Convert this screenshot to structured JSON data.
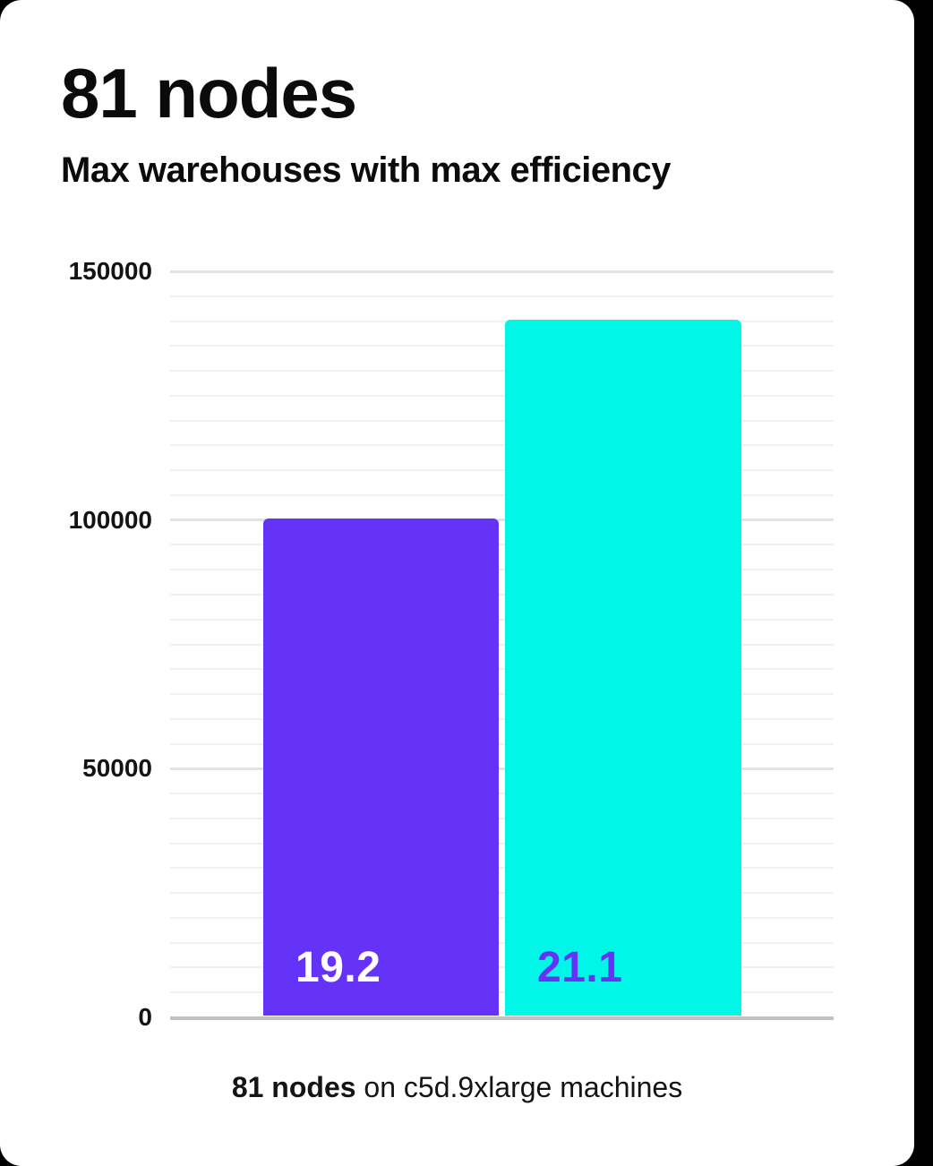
{
  "header": {
    "title": "81 nodes",
    "subtitle": "Max warehouses with max efficiency"
  },
  "caption": {
    "bold": "81 nodes",
    "rest": " on c5d.9xlarge machines"
  },
  "chart_data": {
    "type": "bar",
    "title": "81 nodes",
    "subtitle": "Max warehouses with max efficiency",
    "categories": [
      "19.2",
      "21.1"
    ],
    "values": [
      100000,
      140000
    ],
    "bar_labels": [
      "19.2",
      "21.1"
    ],
    "bar_colors": [
      "#6533f7",
      "#00f7e8"
    ],
    "bar_label_colors": [
      "#ffffff",
      "#6533f7"
    ],
    "xlabel": "81 nodes on c5d.9xlarge machines",
    "ylabel": "",
    "ylim": [
      0,
      150000
    ],
    "y_ticks": [
      0,
      50000,
      100000,
      150000
    ],
    "y_tick_labels": [
      "0",
      "50000",
      "100000",
      "150000"
    ],
    "minor_grid_step": 5000,
    "grid": "horizontal-minor-and-major",
    "legend": "none"
  },
  "colors": {
    "page_background": "#000000",
    "card_background": "#ffffff",
    "text": "#0b0b0b",
    "grid_minor": "#f1f1f1",
    "grid_major": "#e3e3e3",
    "axis_baseline": "#c2c2c2",
    "bar_purple": "#6533f7",
    "bar_cyan": "#00f7e8"
  }
}
